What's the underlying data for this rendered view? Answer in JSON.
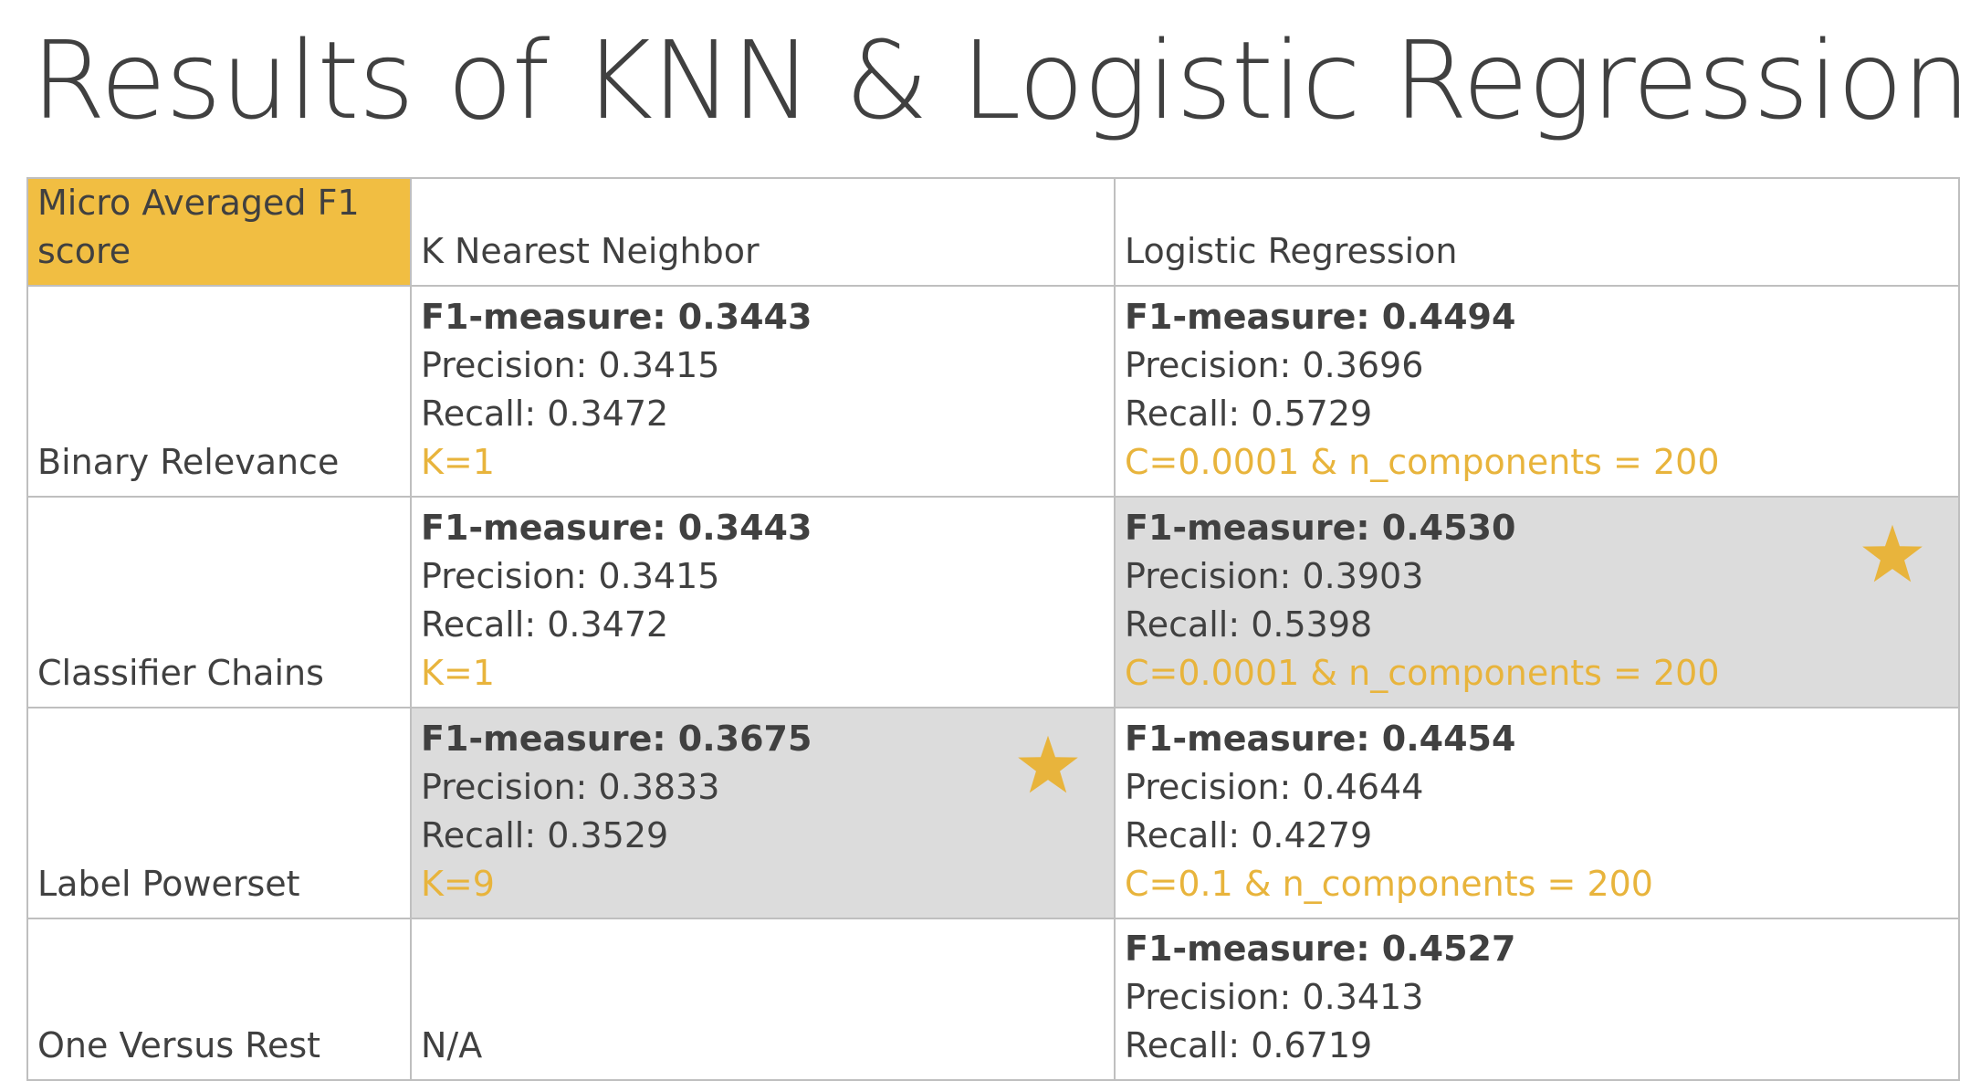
{
  "title": "Results of KNN & Logistic Regression",
  "table": {
    "corner_label": "Micro Averaged F1 score",
    "columns": [
      "K Nearest Neighbor",
      "Logistic Regression"
    ],
    "rows": [
      {
        "label": "Binary Relevance",
        "knn": {
          "f1": "F1-measure: 0.3443",
          "precision": "Precision: 0.3415",
          "recall": "Recall: 0.3472",
          "params": "K=1"
        },
        "lr": {
          "f1": "F1-measure: 0.4494",
          "precision": "Precision: 0.3696",
          "recall": "Recall: 0.5729",
          "params": "C=0.0001 & n_components = 200"
        }
      },
      {
        "label": "Classifier Chains",
        "knn": {
          "f1": "F1-measure: 0.3443",
          "precision": "Precision: 0.3415",
          "recall": "Recall: 0.3472",
          "params": "K=1"
        },
        "lr": {
          "f1": "F1-measure: 0.4530",
          "precision": "Precision: 0.3903",
          "recall": "Recall: 0.5398",
          "params": "C=0.0001 & n_components = 200"
        }
      },
      {
        "label": "Label Powerset",
        "knn": {
          "f1": "F1-measure: 0.3675",
          "precision": "Precision: 0.3833",
          "recall": "Recall: 0.3529",
          "params": "K=9"
        },
        "lr": {
          "f1": "F1-measure: 0.4454",
          "precision": "Precision: 0.4644",
          "recall": "Recall: 0.4279",
          "params": "C=0.1 & n_components = 200"
        }
      },
      {
        "label": "One Versus Rest",
        "knn": {
          "na": "N/A"
        },
        "lr": {
          "f1": "F1-measure: 0.4527",
          "precision": "Precision: 0.3413",
          "recall": "Recall: 0.6719"
        }
      }
    ]
  },
  "icons": {
    "best_marker": "star-icon"
  },
  "colors": {
    "accent": "#e8b43c",
    "header_fill": "#f1be42",
    "highlight_fill": "#dcdcdc",
    "text": "#404040"
  }
}
